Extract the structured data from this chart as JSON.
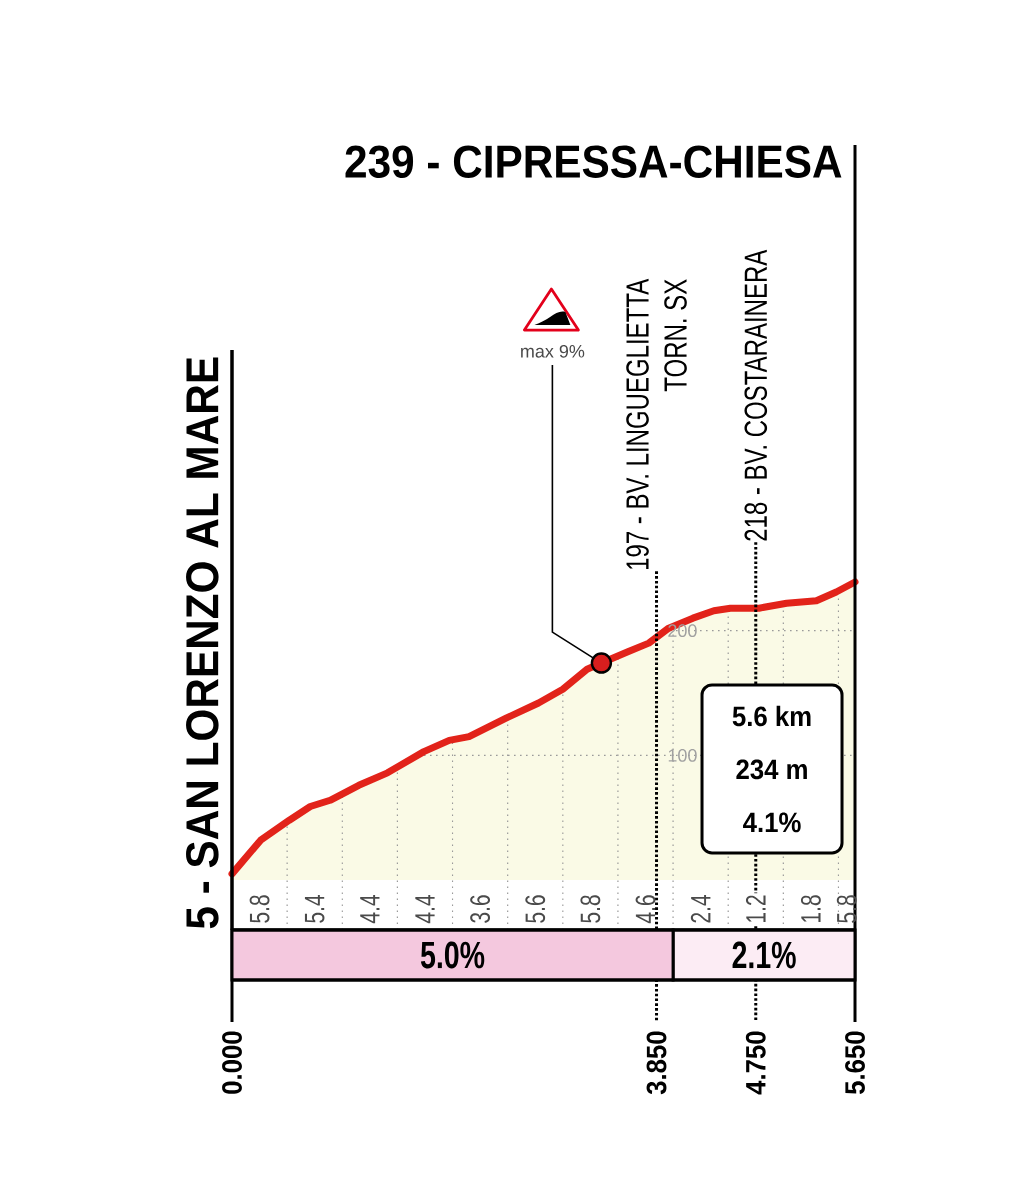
{
  "chart_data": [
    {
      "type": "area",
      "color": "#e2231a",
      "x": [
        0,
        0.26,
        0.52,
        0.71,
        0.89,
        1.15,
        1.41,
        1.74,
        1.97,
        2.15,
        2.49,
        2.78,
        3.0,
        3.22,
        3.35,
        3.59,
        3.78,
        3.96,
        4.18,
        4.37,
        4.52,
        4.78,
        5.03,
        5.3,
        5.48,
        5.65
      ],
      "values": [
        5,
        32,
        48,
        59,
        64,
        76,
        86,
        103,
        112,
        115,
        130,
        142,
        153,
        169,
        174,
        183,
        190,
        202,
        210,
        216,
        218,
        218,
        222,
        224,
        231,
        239
      ],
      "xlim": [
        0,
        5.65
      ],
      "ylim": [
        -40,
        425
      ],
      "xticks": [
        0,
        0.5,
        1,
        1.5,
        2,
        2.5,
        3,
        3.5,
        4,
        4.5,
        5,
        5.5
      ],
      "yticks": [
        100,
        200
      ],
      "grid": true,
      "tick_labels": "y",
      "ref_lines": [
        {
          "axis": "x",
          "value": 0,
          "label": "5 - SAN LORENZO AL MARE",
          "line_style": "solid"
        },
        {
          "axis": "x",
          "value": 3.85,
          "label": "197 - BV. LINGUEGLIETTA TORN. SX",
          "line_style": "dotted"
        },
        {
          "axis": "x",
          "value": 4.75,
          "label": "218 - BV. COSTARAINERA",
          "line_style": "dotted"
        },
        {
          "axis": "x",
          "value": 5.65,
          "label": "239 - CIPRESSA-CHIESA",
          "line_style": "solid"
        }
      ],
      "annotations": [
        {
          "text": "max 9%",
          "x": 3.35,
          "y": 174
        },
        "5.6 km",
        "234 m",
        "4.1%",
        "5.8",
        "5.4",
        "4.4",
        "4.4",
        "3.6",
        "5.6",
        "5.8",
        "4.6",
        "2.4",
        "1.2",
        "1.8",
        "5.8"
      ]
    },
    {
      "type": "bar",
      "orientation": "horizontal",
      "stacked": true,
      "categories": [
        null
      ],
      "series": [
        {
          "name": "5.0%",
          "color": "#f4c8de",
          "values": [
            4
          ]
        },
        {
          "name": "2.1%",
          "color": "#fcecf4",
          "values": [
            1.65
          ]
        }
      ],
      "xlim": [
        0,
        5.65
      ],
      "xticks": [
        {
          "value": 0,
          "label": "0.000"
        },
        {
          "value": 3.85,
          "label": "3.850"
        },
        {
          "value": 4.75,
          "label": "4.750"
        },
        {
          "value": 5.65,
          "label": "5.650"
        }
      ],
      "tick_labels": "x"
    }
  ]
}
